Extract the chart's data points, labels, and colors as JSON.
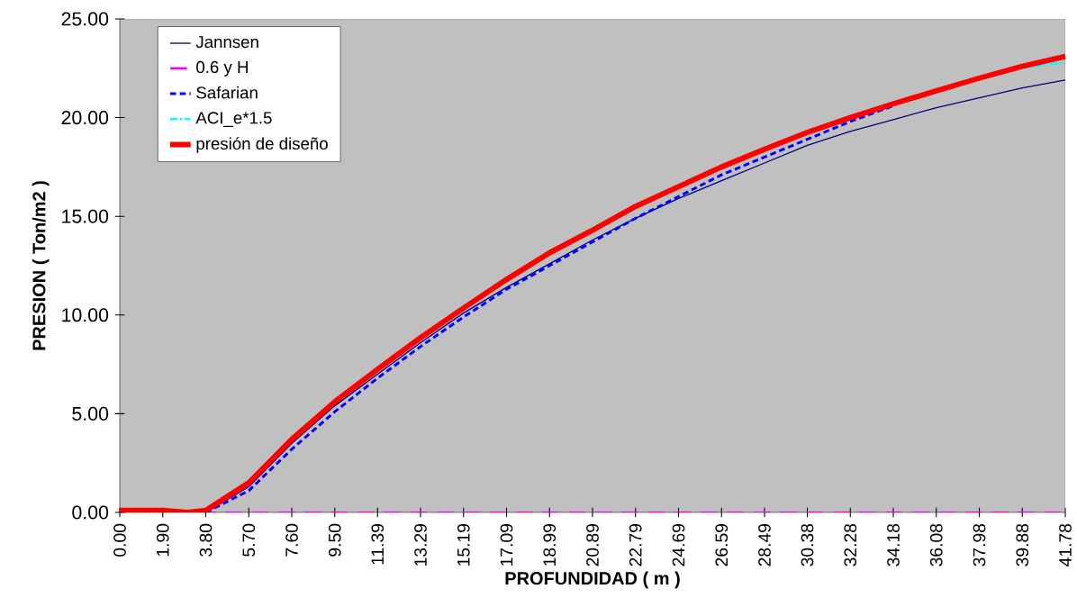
{
  "chart_data": {
    "type": "line",
    "xlabel": "PROFUNDIDAD ( m )",
    "ylabel": "PRESION ( Ton/m2 )",
    "xlim": [
      0,
      41.78
    ],
    "ylim": [
      0,
      25
    ],
    "xticks": [
      {
        "value": 0,
        "label": "0.00"
      },
      {
        "value": 1.9,
        "label": "1.90"
      },
      {
        "value": 3.8,
        "label": "3.80"
      },
      {
        "value": 5.7,
        "label": "5.70"
      },
      {
        "value": 7.6,
        "label": "7.60"
      },
      {
        "value": 9.5,
        "label": "9.50"
      },
      11.39,
      13.29,
      15.19,
      17.09,
      18.99,
      20.89,
      22.79,
      24.69,
      26.59,
      28.49,
      30.38,
      32.28,
      34.18,
      36.08,
      37.98,
      39.88,
      41.78
    ],
    "yticks": [
      {
        "value": 0,
        "label": "0.00"
      },
      {
        "value": 5,
        "label": "5.00"
      },
      {
        "value": 10,
        "label": "10.00"
      },
      {
        "value": 15,
        "label": "15.00"
      },
      {
        "value": 20,
        "label": "20.00"
      },
      {
        "value": 25,
        "label": "25.00"
      }
    ],
    "grid": false,
    "legend": "top left",
    "marker": "none",
    "series": [
      {
        "name": "Jannsen",
        "color": "#000080",
        "line_style": "solid",
        "x": [
          3.8,
          5.7,
          7.6,
          9.5,
          11.39,
          13.29,
          15.19,
          17.09,
          18.99,
          20.89,
          22.79,
          24.69,
          26.59,
          28.49,
          30.38,
          32.28,
          34.18,
          36.08,
          37.98,
          39.88,
          41.78
        ],
        "values": [
          0,
          1.3,
          3.5,
          5.4,
          7.0,
          8.6,
          10.1,
          11.4,
          12.6,
          13.8,
          14.9,
          15.9,
          16.8,
          17.7,
          18.6,
          19.3,
          19.9,
          20.5,
          21.0,
          21.5,
          21.9
        ]
      },
      {
        "name": "0.6 y H",
        "color": "#ff00ff",
        "line_style": "dashed",
        "x": [
          0,
          1.9,
          3.8,
          5.7,
          7.6,
          9.5,
          11.39,
          13.29,
          15.19,
          17.09,
          18.99,
          20.89,
          22.79,
          24.69,
          26.59,
          28.49,
          30.38,
          32.28,
          34.18,
          36.08,
          37.98,
          39.88,
          41.78
        ],
        "values": [
          0,
          0,
          0,
          0,
          0,
          0,
          0,
          0,
          0,
          0,
          0,
          0,
          0,
          0,
          0,
          0,
          0,
          0,
          0,
          0,
          0,
          0,
          0
        ]
      },
      {
        "name": "Safarian",
        "color": "#0000ff",
        "line_style": "dashed",
        "x": [
          3.8,
          5.7,
          7.6,
          9.5,
          11.39,
          13.29,
          15.19,
          17.09,
          18.99,
          20.89,
          22.79,
          24.69,
          26.59,
          28.49,
          30.38,
          32.28,
          34.18
        ],
        "values": [
          0,
          1.1,
          3.2,
          5.1,
          6.8,
          8.4,
          9.9,
          11.3,
          12.5,
          13.7,
          14.9,
          16.0,
          17.1,
          18.0,
          18.9,
          19.8,
          20.6
        ]
      },
      {
        "name": "ACI_e*1.5",
        "color": "#00ffff",
        "line_style": "dashed",
        "x": [
          39.88,
          41.78
        ],
        "values": [
          22.5,
          22.8
        ]
      },
      {
        "name": "presión de diseño",
        "color": "#ff0000",
        "line_style": "solid",
        "x": [
          0,
          1.9,
          3.0,
          3.8,
          5.7,
          7.6,
          9.5,
          11.39,
          13.29,
          15.19,
          17.09,
          18.99,
          20.89,
          22.79,
          24.69,
          26.59,
          28.49,
          30.38,
          32.28,
          34.18,
          36.08,
          37.98,
          39.88,
          41.78
        ],
        "values": [
          0.1,
          0.1,
          0,
          0.1,
          1.5,
          3.7,
          5.6,
          7.25,
          8.85,
          10.35,
          11.8,
          13.15,
          14.3,
          15.5,
          16.5,
          17.5,
          18.4,
          19.25,
          20.0,
          20.7,
          21.35,
          22.0,
          22.6,
          23.1
        ]
      }
    ]
  }
}
